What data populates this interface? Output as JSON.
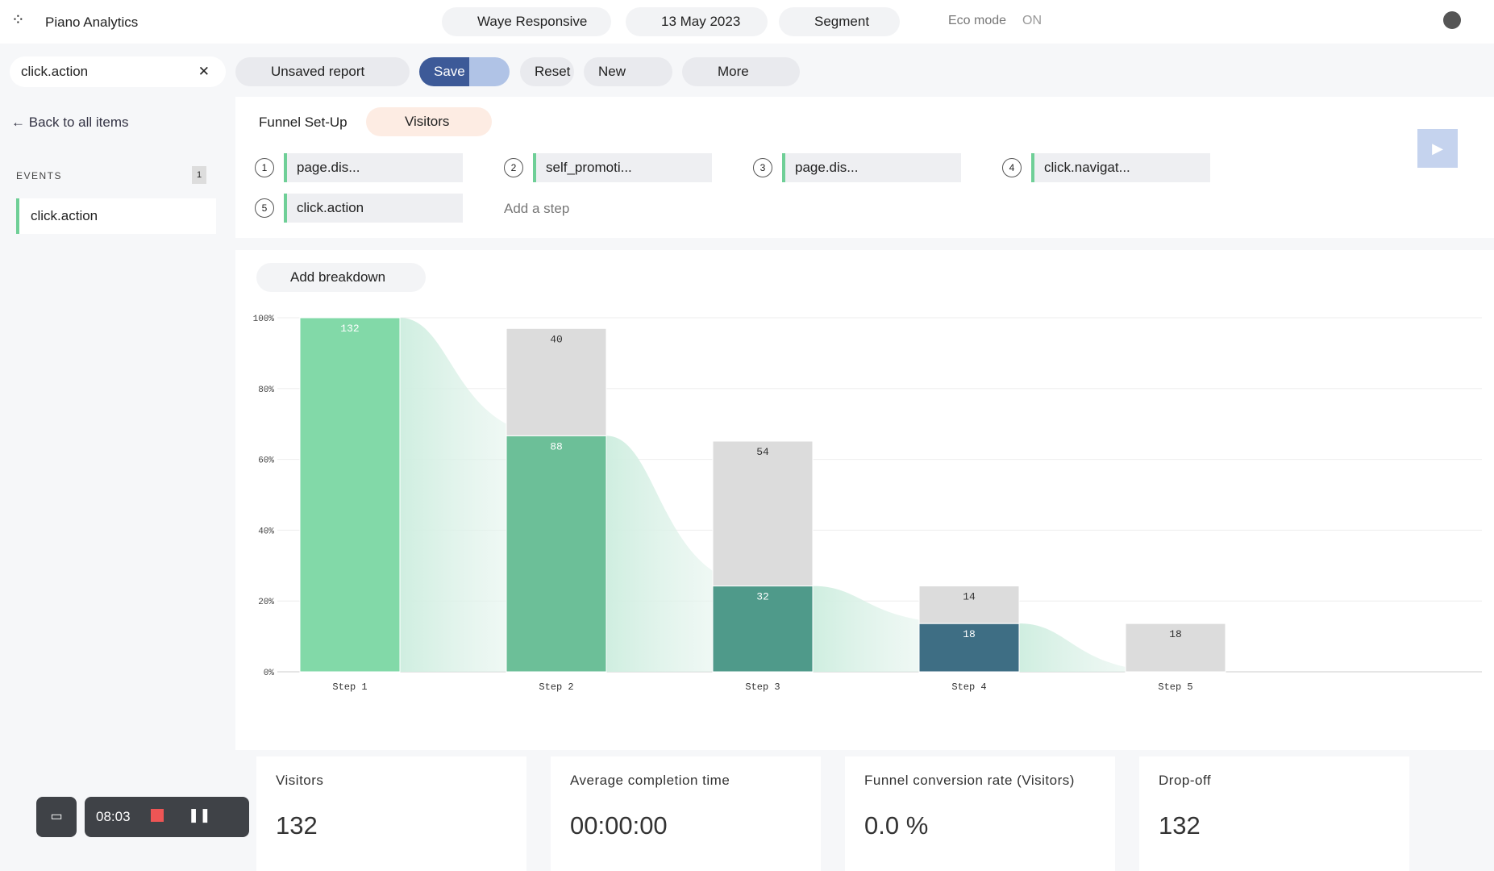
{
  "header": {
    "app": "Piano Analytics",
    "site": "Waye Responsive",
    "date": "13 May 2023",
    "segment": "Segment",
    "eco_label": "Eco mode",
    "eco_state": "ON"
  },
  "toolbar": {
    "search": "click.action",
    "report": "Unsaved report",
    "save": "Save",
    "reset": "Reset",
    "new": "New",
    "more": "More"
  },
  "sidebar": {
    "back": "Back to all items",
    "section": "EVENTS",
    "count": 1,
    "items": [
      "click.action"
    ]
  },
  "funnel": {
    "title": "Funnel Set-Up",
    "audience": "Visitors",
    "steps": [
      {
        "number": 1,
        "label": "page.dis..."
      },
      {
        "number": 2,
        "label": "self_promoti..."
      },
      {
        "number": 3,
        "label": "page.dis..."
      },
      {
        "number": 4,
        "label": "click.navigat..."
      },
      {
        "number": 5,
        "label": "click.action"
      }
    ],
    "add_step": "Add a step",
    "add_breakdown": "Add breakdown"
  },
  "chart_data": {
    "type": "bar",
    "stacked": true,
    "grid": true,
    "categories": [
      "Step 1",
      "Step 2",
      "Step 3",
      "Step 4",
      "Step 5"
    ],
    "series": [
      {
        "colors": [
          "#82d9a8",
          "#6cbf98",
          "#4f9a8a",
          "#3e6e84",
          "#3e6e84"
        ],
        "values": [
          132,
          88,
          32,
          18,
          null
        ]
      },
      {
        "color": "#dcdcdc",
        "values": [
          null,
          40,
          54,
          14,
          18
        ]
      }
    ],
    "ylim": [
      0,
      132
    ],
    "yticks": [
      {
        "value": 0,
        "label": "0%"
      },
      {
        "value": 26.4,
        "label": "20%"
      },
      {
        "value": 52.8,
        "label": "40%"
      },
      {
        "value": 79.2,
        "label": "60%"
      },
      {
        "value": 105.6,
        "label": "80%"
      },
      {
        "value": 132,
        "label": "100%"
      }
    ]
  },
  "kpis": [
    {
      "label": "Visitors",
      "value": 132
    },
    {
      "label": "Average completion time",
      "value": "00:00:00"
    },
    {
      "label": "Funnel conversion rate (Visitors)",
      "value": "0.0 %"
    },
    {
      "label": "Drop-off",
      "value": 132
    }
  ],
  "recorder": {
    "time": "08:03"
  }
}
